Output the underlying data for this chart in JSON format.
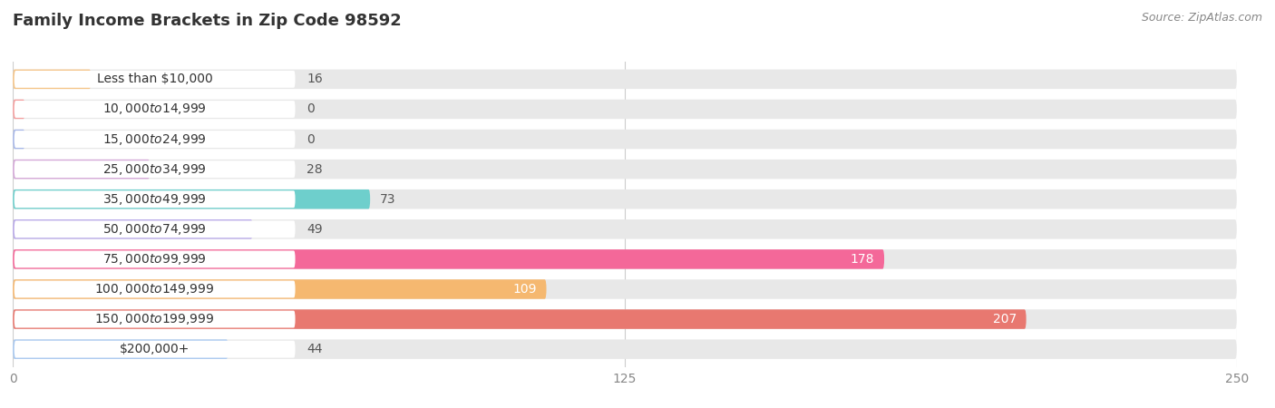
{
  "title": "Family Income Brackets in Zip Code 98592",
  "source": "Source: ZipAtlas.com",
  "categories": [
    "Less than $10,000",
    "$10,000 to $14,999",
    "$15,000 to $24,999",
    "$25,000 to $34,999",
    "$35,000 to $49,999",
    "$50,000 to $74,999",
    "$75,000 to $99,999",
    "$100,000 to $149,999",
    "$150,000 to $199,999",
    "$200,000+"
  ],
  "values": [
    16,
    0,
    0,
    28,
    73,
    49,
    178,
    109,
    207,
    44
  ],
  "bar_colors": [
    "#F5C589",
    "#F4A0A0",
    "#A8B8E8",
    "#D4A8D8",
    "#6ECFCC",
    "#B8A8E8",
    "#F46899",
    "#F5B870",
    "#E87870",
    "#A8C8F0"
  ],
  "xlim": [
    0,
    250
  ],
  "xticks": [
    0,
    125,
    250
  ],
  "bar_bg_color": "#e8e8e8",
  "title_fontsize": 13,
  "label_fontsize": 10,
  "value_fontsize": 10,
  "bar_height": 0.65
}
